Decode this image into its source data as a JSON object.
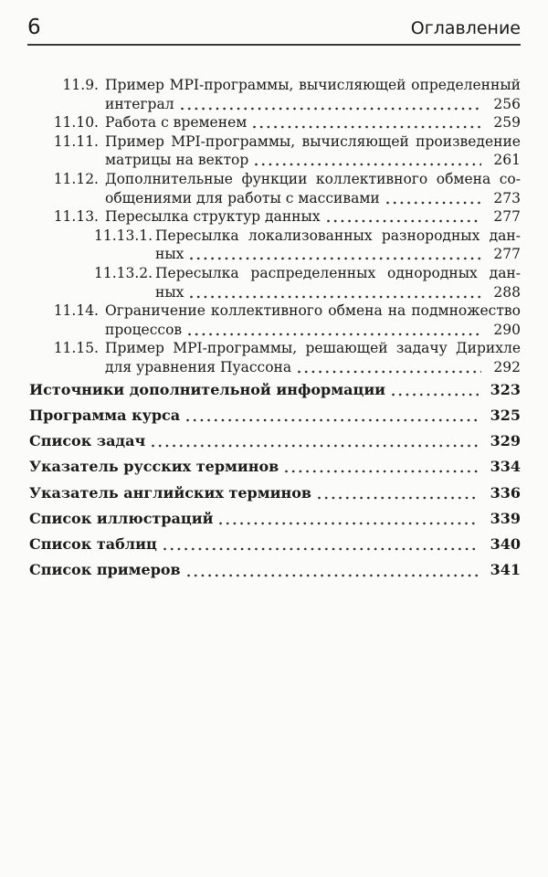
{
  "header": {
    "page_number": "6",
    "title": "Оглавление"
  },
  "colors": {
    "text": "#1b1b1b",
    "rule": "#3a3a3a",
    "background": "#fbfbf9",
    "dot_leader": "#2a2a2a"
  },
  "toc": {
    "entries": [
      {
        "number": "11.9.",
        "level": 2,
        "lines": [
          "Пример MPI-программы, вычисляющей определенный",
          "интеграл"
        ],
        "page": "256"
      },
      {
        "number": "11.10.",
        "level": 2,
        "lines": [
          "Работа с временем"
        ],
        "page": "259"
      },
      {
        "number": "11.11.",
        "level": 2,
        "lines": [
          "Пример MPI-программы, вычисляющей произведение",
          "матрицы на вектор"
        ],
        "page": "261"
      },
      {
        "number": "11.12.",
        "level": 2,
        "lines": [
          "Дополнительные функции коллективного обмена со-",
          "общениями для работы с массивами"
        ],
        "page": "273"
      },
      {
        "number": "11.13.",
        "level": 2,
        "lines": [
          "Пересылка структур данных"
        ],
        "page": "277"
      },
      {
        "number": "11.13.1.",
        "level": 3,
        "lines": [
          "Пересылка локализованных разнородных дан-",
          "ных"
        ],
        "page": "277"
      },
      {
        "number": "11.13.2.",
        "level": 3,
        "lines": [
          "Пересылка распределенных однородных дан-",
          "ных"
        ],
        "page": "288"
      },
      {
        "number": "11.14.",
        "level": 2,
        "lines": [
          "Ограничение коллективного обмена на подмножество",
          "процессов"
        ],
        "page": "290"
      },
      {
        "number": "11.15.",
        "level": 2,
        "lines": [
          "Пример MPI-программы, решающей задачу Дирихле",
          "для уравнения Пуассона"
        ],
        "page": "292"
      },
      {
        "number": "",
        "level": 1,
        "lines": [
          "Источники дополнительной информации"
        ],
        "page": "323"
      },
      {
        "number": "",
        "level": 1,
        "lines": [
          "Программа курса"
        ],
        "page": "325"
      },
      {
        "number": "",
        "level": 1,
        "lines": [
          "Список задач"
        ],
        "page": "329"
      },
      {
        "number": "",
        "level": 1,
        "lines": [
          "Указатель русских терминов"
        ],
        "page": "334"
      },
      {
        "number": "",
        "level": 1,
        "lines": [
          "Указатель английских терминов"
        ],
        "page": "336"
      },
      {
        "number": "",
        "level": 1,
        "lines": [
          "Список иллюстраций"
        ],
        "page": "339"
      },
      {
        "number": "",
        "level": 1,
        "lines": [
          "Список таблиц"
        ],
        "page": "340"
      },
      {
        "number": "",
        "level": 1,
        "lines": [
          "Список примеров"
        ],
        "page": "341"
      }
    ]
  }
}
